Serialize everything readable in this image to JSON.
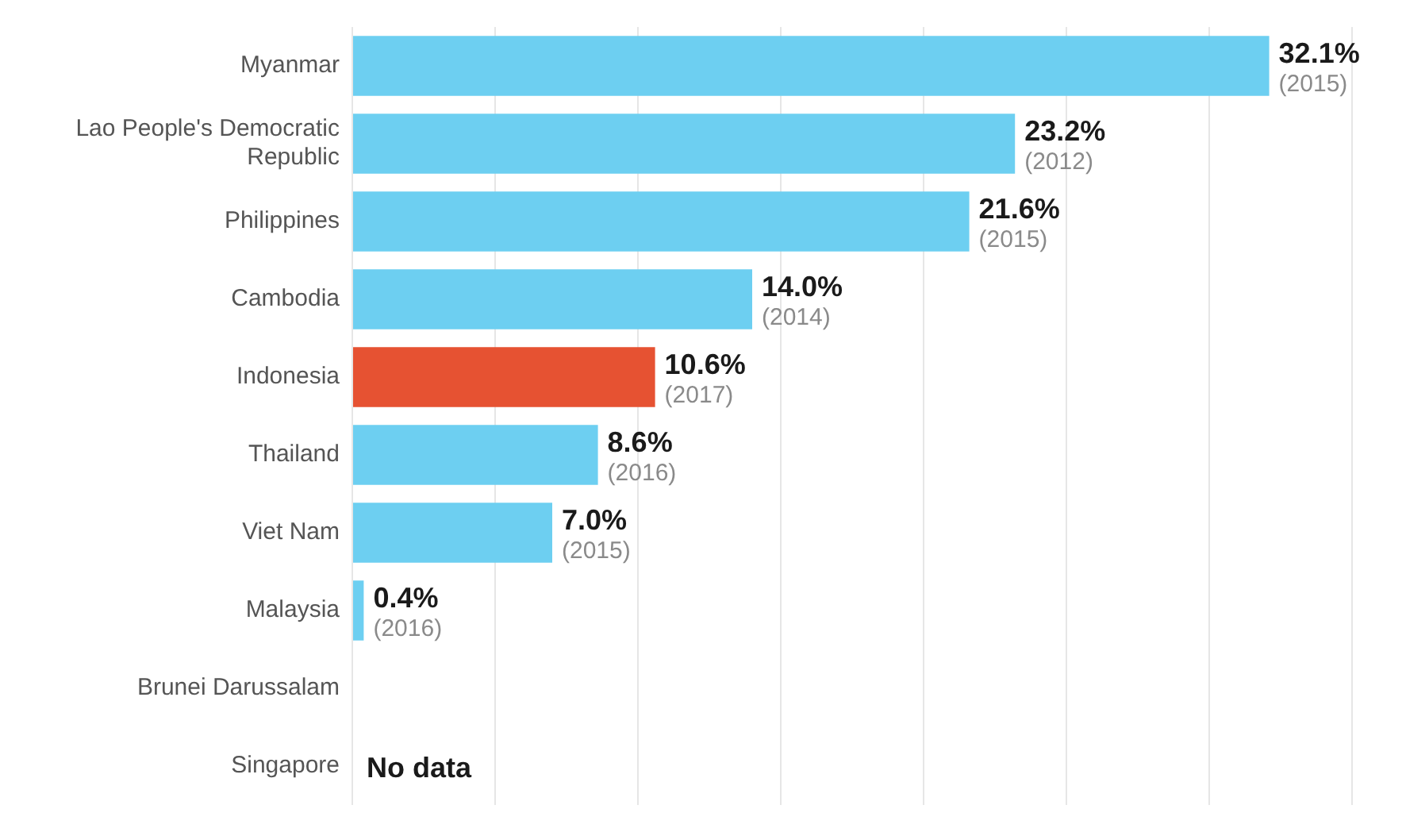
{
  "chart_data": {
    "type": "bar",
    "orientation": "horizontal",
    "categories": [
      "Myanmar",
      "Lao People's Democratic Republic",
      "Philippines",
      "Cambodia",
      "Indonesia",
      "Thailand",
      "Viet Nam",
      "Malaysia",
      "Brunei Darussalam",
      "Singapore"
    ],
    "values": [
      32.1,
      23.2,
      21.6,
      14.0,
      10.6,
      8.6,
      7.0,
      0.4,
      null,
      null
    ],
    "colors": [
      "#6dcff1",
      "#6dcff1",
      "#6dcff1",
      "#6dcff1",
      "#e65232",
      "#6dcff1",
      "#6dcff1",
      "#6dcff1",
      "#6dcff1",
      "#6dcff1"
    ],
    "value_labels": [
      "32.1%",
      "23.2%",
      "21.6%",
      "14.0%",
      "10.6%",
      "8.6%",
      "7.0%",
      "0.4%",
      null,
      null
    ],
    "xlim": [
      0,
      35
    ],
    "xticks": [
      {
        "value": 0,
        "label": null
      },
      {
        "value": 5,
        "label": null
      },
      {
        "value": 10,
        "label": null
      },
      {
        "value": 15,
        "label": null
      },
      {
        "value": 20,
        "label": null
      },
      {
        "value": 25,
        "label": null
      },
      {
        "value": 30,
        "label": null
      },
      {
        "value": 35,
        "label": null
      }
    ],
    "grid": "x",
    "tick_labels": "y",
    "annotations": [
      {
        "text": "(2015)",
        "x": 32.1,
        "y": "Myanmar"
      },
      {
        "text": "(2012)",
        "x": 23.2,
        "y": "Lao People's Democratic Republic"
      },
      {
        "text": "(2015)",
        "x": 21.6,
        "y": "Philippines"
      },
      {
        "text": "(2014)",
        "x": 14.0,
        "y": "Cambodia"
      },
      {
        "text": "(2017)",
        "x": 10.6,
        "y": "Indonesia"
      },
      {
        "text": "(2016)",
        "x": 8.6,
        "y": "Thailand"
      },
      {
        "text": "(2015)",
        "x": 7.0,
        "y": "Viet Nam"
      },
      {
        "text": "(2016)",
        "x": 0.4,
        "y": "Malaysia"
      },
      "No data"
    ]
  }
}
